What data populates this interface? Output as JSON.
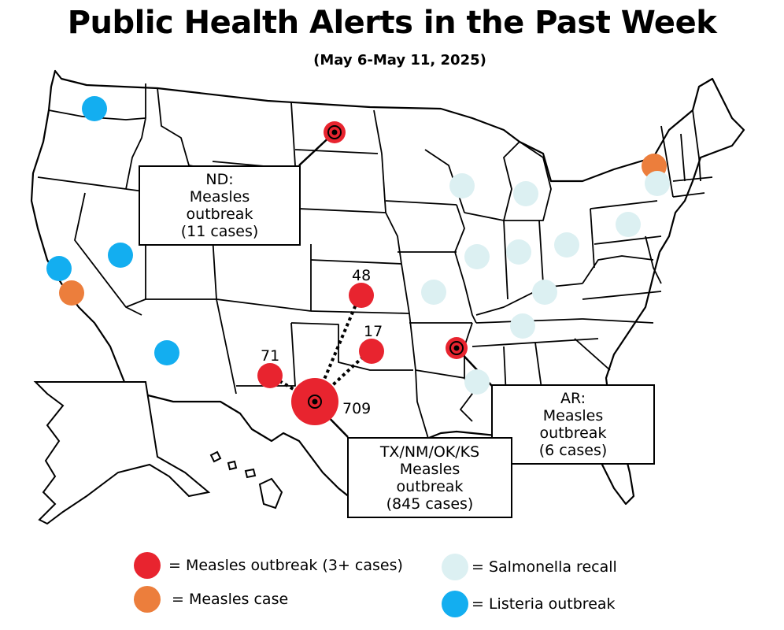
{
  "title": "Public Health Alerts in the Past Week",
  "subtitle": "(May 6-May 11, 2025)",
  "colors": {
    "measles_outbreak": "#e8242f",
    "measles_case": "#ec7e3c",
    "salmonella_recall": "#dcf0f2",
    "listeria_outbreak": "#13aef0",
    "land": "#ffffff",
    "border": "#000000"
  },
  "callouts": {
    "nd": {
      "lines": [
        "ND:",
        "Measles",
        "outbreak",
        "(11 cases)"
      ]
    },
    "ar": {
      "lines": [
        "AR:",
        "Measles",
        "outbreak",
        "(6 cases)"
      ]
    },
    "tx": {
      "lines": [
        "TX/NM/OK/KS",
        "Measles",
        "outbreak",
        "(845 cases)"
      ]
    }
  },
  "case_labels": {
    "kansas": "48",
    "oklahoma": "17",
    "new_mexico": "71",
    "texas": "709"
  },
  "legend": {
    "measles_outbreak": "= Measles outbreak (3+ cases)",
    "measles_case": "= Measles case",
    "salmonella_recall": "= Salmonella recall",
    "listeria_outbreak": "= Listeria outbreak"
  },
  "markers": [
    {
      "state": "Washington",
      "type": "listeria_outbreak"
    },
    {
      "state": "Nevada",
      "type": "listeria_outbreak"
    },
    {
      "state": "California",
      "type": "listeria_outbreak"
    },
    {
      "state": "California",
      "type": "measles_case"
    },
    {
      "state": "Arizona",
      "type": "listeria_outbreak"
    },
    {
      "state": "North Dakota",
      "type": "measles_outbreak"
    },
    {
      "state": "Kansas",
      "type": "measles_outbreak"
    },
    {
      "state": "Oklahoma",
      "type": "measles_outbreak"
    },
    {
      "state": "New Mexico",
      "type": "measles_outbreak"
    },
    {
      "state": "Texas",
      "type": "measles_outbreak"
    },
    {
      "state": "Arkansas",
      "type": "measles_outbreak"
    },
    {
      "state": "New York",
      "type": "measles_case"
    },
    {
      "state": "Wisconsin",
      "type": "salmonella_recall"
    },
    {
      "state": "Michigan",
      "type": "salmonella_recall"
    },
    {
      "state": "Vermont",
      "type": "salmonella_recall"
    },
    {
      "state": "Pennsylvania",
      "type": "salmonella_recall"
    },
    {
      "state": "Illinois",
      "type": "salmonella_recall"
    },
    {
      "state": "Indiana",
      "type": "salmonella_recall"
    },
    {
      "state": "Ohio",
      "type": "salmonella_recall"
    },
    {
      "state": "Missouri",
      "type": "salmonella_recall"
    },
    {
      "state": "Kentucky",
      "type": "salmonella_recall"
    },
    {
      "state": "Tennessee",
      "type": "salmonella_recall"
    },
    {
      "state": "Mississippi",
      "type": "salmonella_recall"
    }
  ]
}
